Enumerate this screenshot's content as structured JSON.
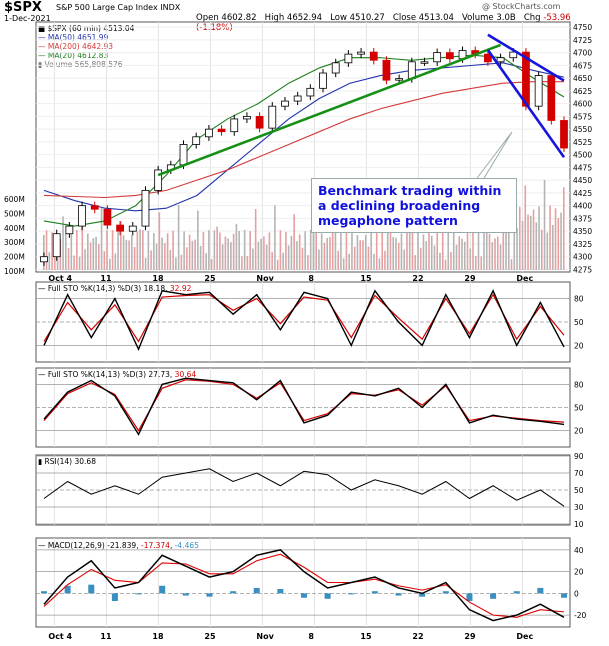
{
  "header": {
    "ticker": "$SPX",
    "name": "S&P 500 Large Cap Index",
    "exchange": "INDX",
    "date": "1-Dec-2021",
    "brand": "@ StockCharts.com",
    "open_label": "Open",
    "open": "4602.82",
    "high_label": "High",
    "high": "4652.94",
    "low_label": "Low",
    "low": "4510.27",
    "close_label": "Close",
    "close": "4513.04",
    "volume_label": "Volume",
    "volume": "3.0B",
    "chg_label": "Chg",
    "chg": "-53.96 (-1.18%)"
  },
  "legend": {
    "price": "$SPX (60 min) 4513.04",
    "ma50": "MA(50) 4651.99",
    "ma200": "MA(200) 4642.93",
    "ma20": "MA(20) 4612.83",
    "volume": "Volume 565,808,576"
  },
  "annotation": {
    "line1": "Benchmark trading within",
    "line2": "a declining broadening",
    "line3": "megaphone pattern"
  },
  "colors": {
    "up": "#000000",
    "down": "#d40000",
    "ma50": "#2233aa",
    "ma200": "#d43a3a",
    "ma20": "#1e7e1e",
    "trend_green": "#159015",
    "trend_blue": "#1515dd",
    "osc_k": "#000000",
    "osc_d": "#d40000",
    "rsi_fill": "#5a8a5a",
    "macd_signal": "#e00000",
    "histogram": "#3a8fc0"
  },
  "x_axis": {
    "labels": [
      "Oct 4",
      "11",
      "18",
      "25",
      "Nov",
      "8",
      "15",
      "22",
      "29",
      "Dec"
    ]
  },
  "panels": {
    "sto1": {
      "label": "Full STO %K(14,3) %D(3)",
      "k": "18.18",
      "d": "32.92",
      "ticks": [
        "80",
        "50",
        "20"
      ]
    },
    "sto2": {
      "label": "Full STO %K(14,13) %D(3)",
      "k": "27.73",
      "d": "30.64",
      "ticks": [
        "80",
        "50",
        "20"
      ]
    },
    "rsi": {
      "label": "RSI(14)",
      "value": "30.68",
      "ticks": [
        "90",
        "70",
        "50",
        "30",
        "10"
      ]
    },
    "macd": {
      "label": "MACD(12,26,9)",
      "macd": "-21.839",
      "signal": "-17.374",
      "hist": "-4.465",
      "ticks": [
        "40",
        "20",
        "0",
        "-20"
      ]
    }
  },
  "chart_data": [
    {
      "type": "candlestick",
      "title": "$SPX S&P 500 Large Cap Index INDX",
      "ylabel": "",
      "ylim": [
        4270,
        4760
      ],
      "y_ticks": [
        4750,
        4725,
        4700,
        4675,
        4650,
        4625,
        4600,
        4575,
        4550,
        4525,
        4500,
        4475,
        4450,
        4425,
        4400,
        4375,
        4350,
        4325,
        4300,
        4275
      ],
      "volume_ticks": [
        "600M",
        "500M",
        "400M",
        "300M",
        "200M",
        "100M"
      ],
      "x_labels": [
        "Oct 4",
        "11",
        "18",
        "25",
        "Nov",
        "8",
        "15",
        "22",
        "29",
        "Dec"
      ],
      "price_path": [
        [
          "Oct 4",
          4300
        ],
        [
          "Oct 5",
          4345
        ],
        [
          "Oct 6",
          4360
        ],
        [
          "Oct 7",
          4400
        ],
        [
          "Oct 8",
          4393
        ],
        [
          "Oct 11",
          4362
        ],
        [
          "Oct 12",
          4350
        ],
        [
          "Oct 13",
          4360
        ],
        [
          "Oct 14",
          4430
        ],
        [
          "Oct 15",
          4470
        ],
        [
          "Oct 18",
          4480
        ],
        [
          "Oct 19",
          4520
        ],
        [
          "Oct 20",
          4535
        ],
        [
          "Oct 21",
          4550
        ],
        [
          "Oct 22",
          4545
        ],
        [
          "Oct 25",
          4570
        ],
        [
          "Oct 26",
          4575
        ],
        [
          "Oct 27",
          4552
        ],
        [
          "Oct 28",
          4595
        ],
        [
          "Oct 29",
          4605
        ],
        [
          "Nov 1",
          4615
        ],
        [
          "Nov 2",
          4630
        ],
        [
          "Nov 3",
          4660
        ],
        [
          "Nov 4",
          4680
        ],
        [
          "Nov 5",
          4697
        ],
        [
          "Nov 8",
          4701
        ],
        [
          "Nov 9",
          4685
        ],
        [
          "Nov 10",
          4646
        ],
        [
          "Nov 11",
          4649
        ],
        [
          "Nov 12",
          4682
        ],
        [
          "Nov 15",
          4682
        ],
        [
          "Nov 16",
          4700
        ],
        [
          "Nov 17",
          4688
        ],
        [
          "Nov 18",
          4704
        ],
        [
          "Nov 19",
          4697
        ],
        [
          "Nov 22",
          4682
        ],
        [
          "Nov 23",
          4690
        ],
        [
          "Nov 24",
          4701
        ],
        [
          "Nov 26",
          4595
        ],
        [
          "Nov 29",
          4655
        ],
        [
          "Nov 30",
          4567
        ],
        [
          "Dec 1",
          4513
        ]
      ],
      "series": [
        {
          "name": "MA(50)",
          "values": [
            4430,
            4410,
            4395,
            4390,
            4395,
            4420,
            4470,
            4520,
            4570,
            4610,
            4640,
            4655,
            4665,
            4670,
            4675,
            4680,
            4665,
            4652
          ]
        },
        {
          "name": "MA(200)",
          "values": [
            4420,
            4418,
            4416,
            4420,
            4430,
            4450,
            4470,
            4495,
            4520,
            4545,
            4570,
            4590,
            4605,
            4620,
            4630,
            4640,
            4643,
            4643
          ]
        },
        {
          "name": "MA(20)",
          "values": [
            4370,
            4360,
            4370,
            4400,
            4460,
            4530,
            4570,
            4600,
            4640,
            4670,
            4690,
            4690,
            4685,
            4690,
            4695,
            4690,
            4650,
            4613
          ]
        }
      ],
      "trendlines": [
        {
          "name": "support",
          "from": [
            "Oct 15",
            4460
          ],
          "to": [
            "Nov 23",
            4715
          ]
        },
        {
          "name": "upper channel",
          "from": [
            "Nov 22",
            4735
          ],
          "to": [
            "Dec 1",
            4645
          ]
        },
        {
          "name": "lower channel",
          "from": [
            "Nov 22",
            4705
          ],
          "to": [
            "Dec 1",
            4495
          ]
        }
      ]
    },
    {
      "type": "line",
      "title": "Full STO %K(14,3) %D(3)",
      "ylim": [
        0,
        100
      ],
      "y_ticks": [
        80,
        50,
        20
      ],
      "series": [
        {
          "name": "%K",
          "values": [
            20,
            85,
            30,
            80,
            15,
            90,
            85,
            88,
            60,
            85,
            40,
            88,
            80,
            20,
            90,
            50,
            20,
            85,
            30,
            90,
            20,
            75,
            18
          ]
        },
        {
          "name": "%D",
          "values": [
            25,
            75,
            40,
            72,
            25,
            82,
            84,
            85,
            65,
            80,
            48,
            82,
            78,
            30,
            84,
            55,
            28,
            80,
            35,
            85,
            28,
            70,
            33
          ]
        }
      ]
    },
    {
      "type": "line",
      "title": "Full STO %K(14,13) %D(3)",
      "ylim": [
        0,
        100
      ],
      "y_ticks": [
        80,
        50,
        20
      ],
      "series": [
        {
          "name": "%K",
          "values": [
            35,
            70,
            85,
            65,
            15,
            80,
            88,
            85,
            82,
            60,
            85,
            30,
            40,
            70,
            65,
            75,
            50,
            80,
            30,
            40,
            35,
            32,
            28
          ]
        },
        {
          "name": "%D",
          "values": [
            33,
            68,
            82,
            67,
            20,
            75,
            86,
            84,
            80,
            62,
            82,
            33,
            42,
            68,
            66,
            73,
            53,
            78,
            33,
            39,
            36,
            33,
            31
          ]
        }
      ]
    },
    {
      "type": "line",
      "title": "RSI(14)",
      "ylim": [
        10,
        90
      ],
      "y_ticks": [
        90,
        70,
        50,
        30,
        10
      ],
      "series": [
        {
          "name": "RSI(14)",
          "values": [
            40,
            60,
            45,
            55,
            45,
            65,
            70,
            75,
            60,
            70,
            55,
            72,
            68,
            50,
            62,
            55,
            45,
            60,
            40,
            55,
            38,
            50,
            31
          ]
        }
      ]
    },
    {
      "type": "line",
      "title": "MACD(12,26,9)",
      "ylim": [
        -30,
        50
      ],
      "y_ticks": [
        40,
        20,
        0,
        -20
      ],
      "series": [
        {
          "name": "MACD",
          "values": [
            -10,
            15,
            30,
            5,
            10,
            35,
            25,
            15,
            20,
            35,
            40,
            20,
            5,
            10,
            15,
            5,
            0,
            10,
            -15,
            -25,
            -20,
            -10,
            -22
          ]
        },
        {
          "name": "Signal",
          "values": [
            -12,
            8,
            22,
            12,
            10,
            28,
            27,
            18,
            18,
            30,
            36,
            24,
            10,
            10,
            13,
            7,
            3,
            8,
            -8,
            -20,
            -22,
            -15,
            -17
          ]
        },
        {
          "name": "Histogram",
          "values": [
            2,
            7,
            8,
            -7,
            0,
            7,
            -2,
            -3,
            2,
            5,
            4,
            -4,
            -5,
            0,
            2,
            -2,
            -3,
            2,
            -7,
            -5,
            2,
            5,
            -4
          ]
        }
      ]
    }
  ]
}
